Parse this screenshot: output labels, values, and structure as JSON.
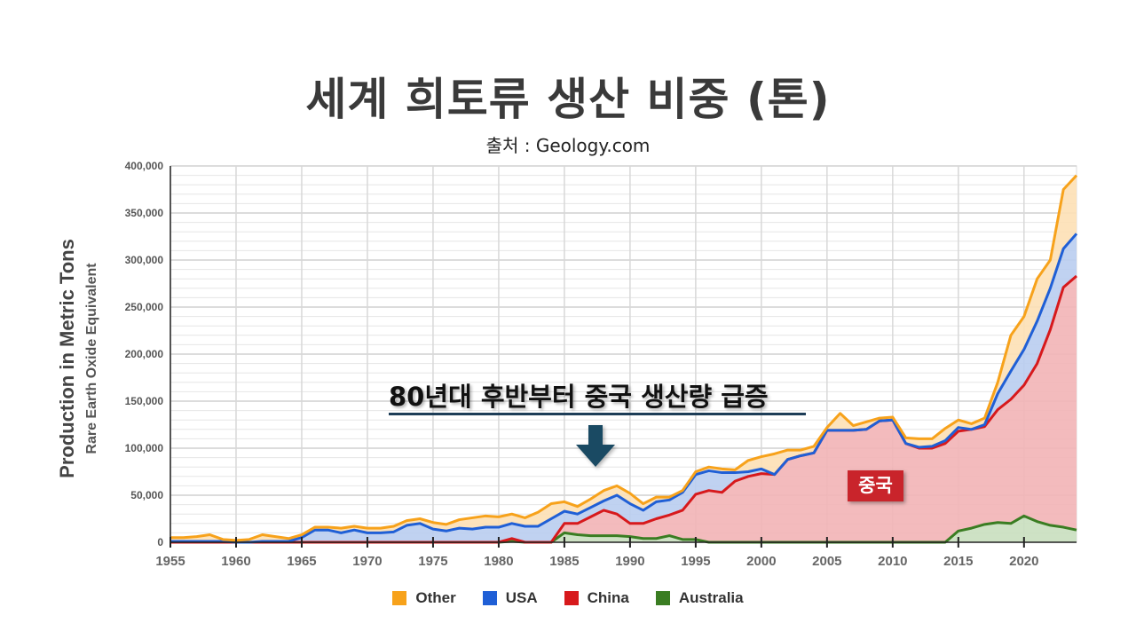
{
  "title": "세계 희토류 생산 비중 (톤)",
  "subtitle": "출처 : Geology.com",
  "annotation": {
    "text": "80년대 후반부터 중국 생산량 급증",
    "label": "중국",
    "arrow_icon": "down-arrow-icon"
  },
  "chart_data": {
    "type": "area",
    "stacked": true,
    "ylabel": "Production in Metric Tons",
    "ylabel_sub": "Rare Earth Oxide Equivalent",
    "xlim": [
      1955,
      2024
    ],
    "ylim": [
      0,
      400000
    ],
    "x_ticks": [
      "1955",
      "1960",
      "1965",
      "1970",
      "1975",
      "1980",
      "1985",
      "1990",
      "1995",
      "2000",
      "2005",
      "2010",
      "2015",
      "2020"
    ],
    "y_ticks": [
      "0",
      "50,000",
      "100,000",
      "150,000",
      "200,000",
      "250,000",
      "300,000",
      "350,000",
      "400,000"
    ],
    "grid": true,
    "legend_position": "bottom",
    "unit_multiplier": 1000,
    "series": [
      {
        "name": "Australia",
        "color": "#3a7d22",
        "fill": "#c9dfbf",
        "values": [
          0,
          0,
          0,
          0,
          0,
          0,
          0,
          0,
          0,
          0,
          0,
          0,
          0,
          0,
          0,
          0,
          0,
          0,
          0,
          0,
          0,
          0,
          0,
          0,
          0,
          0,
          1,
          0,
          0,
          0,
          10,
          8,
          7,
          7,
          7,
          6,
          4,
          4,
          7,
          3,
          3,
          0,
          0,
          0,
          0,
          0,
          0,
          0,
          0,
          0,
          0,
          0,
          0,
          0,
          0,
          0,
          0,
          0,
          0,
          0,
          12,
          15,
          19,
          21,
          20,
          28,
          22,
          18,
          16,
          13
        ]
      },
      {
        "name": "China",
        "color": "#d7191c",
        "fill": "#f2b4b6",
        "values": [
          0,
          0,
          0,
          0,
          0,
          0,
          0,
          0,
          0,
          0,
          0,
          0,
          0,
          0,
          0,
          0,
          0,
          0,
          0,
          0,
          0,
          0,
          0,
          0,
          0,
          0,
          3,
          0,
          0,
          0,
          10,
          12,
          20,
          27,
          23,
          14,
          16,
          21,
          22,
          31,
          48,
          55,
          53,
          65,
          70,
          73,
          72,
          88,
          92,
          95,
          119,
          119,
          119,
          120,
          129,
          130,
          105,
          100,
          100,
          105,
          106,
          105,
          104,
          120,
          132,
          139,
          168,
          208,
          255,
          270
        ]
      },
      {
        "name": "USA",
        "color": "#1f5fd6",
        "fill": "#b9cdf0",
        "values": [
          1,
          1,
          1,
          1,
          1,
          0,
          0,
          1,
          1,
          1,
          5,
          13,
          13,
          10,
          13,
          10,
          10,
          11,
          18,
          20,
          14,
          12,
          15,
          14,
          16,
          16,
          16,
          17,
          17,
          25,
          13,
          10,
          10,
          10,
          20,
          21,
          14,
          18,
          16,
          19,
          21,
          21,
          21,
          9,
          5,
          5,
          0,
          0,
          0,
          0,
          0,
          0,
          0,
          0,
          0,
          0,
          0,
          1,
          2,
          3,
          4,
          0,
          2,
          17,
          30,
          38,
          45,
          44,
          41,
          45
        ]
      },
      {
        "name": "Other",
        "color": "#f7a21b",
        "fill": "#fde0b5",
        "values": [
          4,
          4,
          5,
          7,
          2,
          2,
          3,
          7,
          5,
          3,
          3,
          3,
          3,
          5,
          4,
          5,
          5,
          6,
          5,
          5,
          7,
          7,
          9,
          12,
          12,
          11,
          10,
          9,
          15,
          16,
          10,
          8,
          9,
          11,
          10,
          11,
          7,
          5,
          3,
          2,
          3,
          4,
          4,
          3,
          12,
          13,
          22,
          10,
          6,
          7,
          3,
          18,
          5,
          8,
          3,
          3,
          6,
          9,
          8,
          13,
          8,
          6,
          7,
          12,
          38,
          35,
          45,
          30,
          63,
          62
        ]
      }
    ],
    "legend_order": [
      "Other",
      "USA",
      "China",
      "Australia"
    ]
  }
}
